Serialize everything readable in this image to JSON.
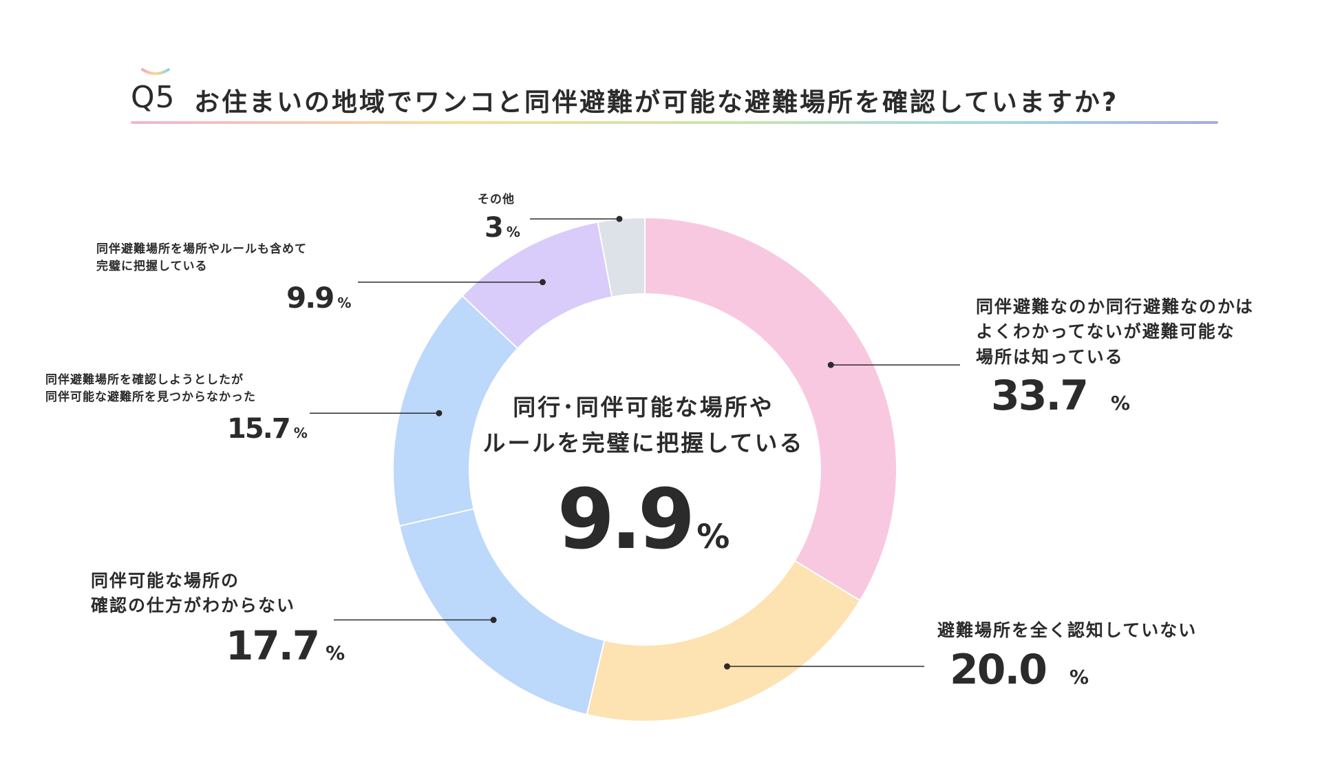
{
  "header": {
    "badge": "Q5",
    "title": "お住まいの地域でワンコと同伴避難が可能な避難場所を確認していますか?"
  },
  "center": {
    "line1": "同行･同伴可能な場所や",
    "line2": "ルールを完璧に把握している",
    "value": "9.9",
    "unit": "%"
  },
  "chart_data": {
    "type": "pie",
    "donut": true,
    "unit": "%",
    "segments": [
      {
        "label": "同伴避難なのか同行避難なのかはよくわかってないが避難可能な場所は知っている",
        "value": 33.7,
        "display": "33.7",
        "color": "#f8c8e0"
      },
      {
        "label": "避難場所を全く認知していない",
        "value": 20.0,
        "display": "20.0",
        "color": "#fde2b2"
      },
      {
        "label": "同伴可能な場所の確認の仕方がわからない",
        "value": 17.7,
        "display": "17.7",
        "color": "#bcd8fb"
      },
      {
        "label": "同伴避難場所を確認しようとしたが同伴可能な避難所を見つからなかった",
        "value": 15.7,
        "display": "15.7",
        "color": "#bcd8fb"
      },
      {
        "label": "同伴避難場所を場所やルールも含めて完璧に把握している",
        "value": 9.9,
        "display": "9.9",
        "color": "#d9cbfa"
      },
      {
        "label": "その他",
        "value": 3,
        "display": "3",
        "color": "#dde1e8"
      }
    ]
  },
  "labels": {
    "seg0": {
      "line1": "同伴避難なのか同行避難なのかは",
      "line2": "よくわかってないが避難可能な",
      "line3": "場所は知っている",
      "value": "33.7",
      "unit": "%"
    },
    "seg1": {
      "line1": "避難場所を全く認知していない",
      "value": "20.0",
      "unit": "%"
    },
    "seg2": {
      "line1": "同伴可能な場所の",
      "line2": "確認の仕方がわからない",
      "value": "17.7",
      "unit": "%"
    },
    "seg3": {
      "line1": "同伴避難場所を確認しようとしたが",
      "line2": "同伴可能な避難所を見つからなかった",
      "value": "15.7",
      "unit": "%"
    },
    "seg4": {
      "line1": "同伴避難場所を場所やルールも含めて",
      "line2": "完璧に把握している",
      "value": "9.9",
      "unit": "%"
    },
    "seg5": {
      "line1": "その他",
      "value": "3",
      "unit": "%"
    }
  }
}
